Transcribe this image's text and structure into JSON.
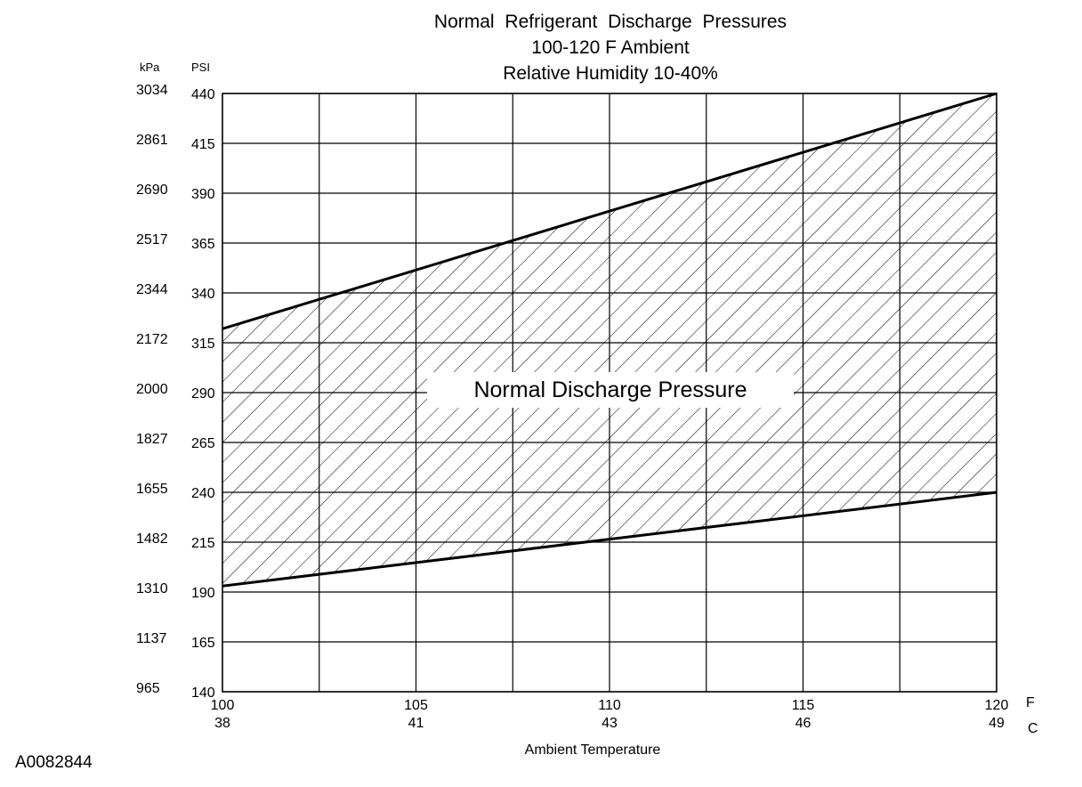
{
  "chart_data": {
    "type": "area",
    "title": "Normal  Refrigerant  Discharge  Pressures",
    "subtitle": [
      "100-120 F Ambient",
      "Relative Humidity 10-40%"
    ],
    "xlabel": "Ambient Temperature",
    "xlim": [
      100,
      120
    ],
    "ylim": [
      140,
      440
    ],
    "x_ticks_f": [
      "100",
      "105",
      "110",
      "115",
      "120"
    ],
    "x_ticks_c": [
      "38",
      "41",
      "43",
      "46",
      "49"
    ],
    "x_unit_f": "F",
    "x_unit_c": "C",
    "y_ticks_psi": [
      "440",
      "415",
      "390",
      "365",
      "340",
      "315",
      "290",
      "265",
      "240",
      "215",
      "190",
      "165",
      "140"
    ],
    "y_ticks_kpa": [
      "3034",
      "2861",
      "2690",
      "2517",
      "2344",
      "2172",
      "2000",
      "1827",
      "1655",
      "1482",
      "1310",
      "1137",
      "965"
    ],
    "y_unit_kpa": "kPa",
    "y_unit_psi": "PSI",
    "grid": true,
    "band": {
      "label": "Normal Discharge Pressure",
      "x": [
        100,
        120
      ],
      "upper_psi": [
        322,
        440
      ],
      "lower_psi": [
        193,
        240
      ]
    }
  },
  "figure_code": "A0082844"
}
